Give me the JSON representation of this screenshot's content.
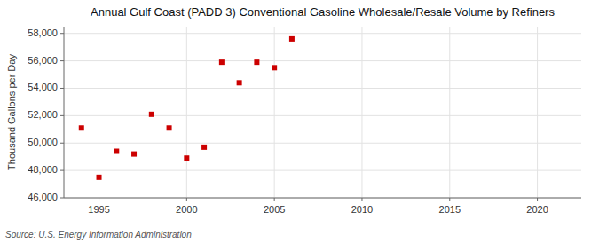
{
  "chart_data": {
    "type": "scatter",
    "title": "Annual Gulf Coast (PADD 3) Conventional Gasoline Wholesale/Resale Volume by Refiners",
    "ylabel": "Thousand Gallons per Day",
    "source": "Source: U.S. Energy Information Administration",
    "x": [
      1994,
      1995,
      1996,
      1997,
      1998,
      1999,
      2000,
      2001,
      2002,
      2003,
      2004,
      2005,
      2006
    ],
    "values": [
      51100,
      47500,
      49400,
      49200,
      52100,
      51100,
      48900,
      49700,
      55900,
      54400,
      55900,
      55500,
      57600
    ],
    "color": "#cc0000",
    "marker": "square",
    "xlim": [
      1993.0,
      2022.5
    ],
    "ylim": [
      46000,
      58500
    ],
    "xticks": [
      1995,
      2000,
      2005,
      2010,
      2015,
      2020
    ],
    "yticks": [
      {
        "value": 46000,
        "label": "46,000"
      },
      {
        "value": 48000,
        "label": "48,000"
      },
      {
        "value": 50000,
        "label": "50,000"
      },
      {
        "value": 52000,
        "label": "52,000"
      },
      {
        "value": 54000,
        "label": "54,000"
      },
      {
        "value": 56000,
        "label": "56,000"
      },
      {
        "value": 58000,
        "label": "58,000"
      }
    ],
    "grid": true
  }
}
